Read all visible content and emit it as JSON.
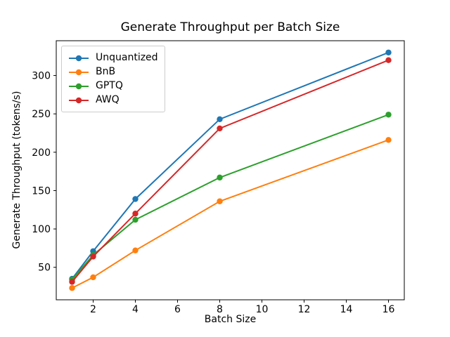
{
  "chart_data": {
    "type": "line",
    "title": "Generate Throughput per Batch Size",
    "xlabel": "Batch Size",
    "ylabel": "Generate Throughput (tokens/s)",
    "x": [
      1,
      2,
      4,
      8,
      16
    ],
    "series": [
      {
        "name": "Unquantized",
        "color": "#1f77b4",
        "values": [
          35,
          71,
          139,
          243,
          330
        ]
      },
      {
        "name": "BnB",
        "color": "#ff7f0e",
        "values": [
          23,
          37,
          72,
          136,
          216
        ]
      },
      {
        "name": "GPTQ",
        "color": "#2ca02c",
        "values": [
          34,
          66,
          112,
          167,
          249
        ]
      },
      {
        "name": "AWQ",
        "color": "#d62728",
        "values": [
          31,
          64,
          120,
          231,
          320
        ]
      }
    ],
    "xticks": [
      2,
      4,
      6,
      8,
      10,
      12,
      14,
      16
    ],
    "yticks": [
      50,
      100,
      150,
      200,
      250,
      300
    ],
    "xlim": [
      0.25,
      16.75
    ],
    "ylim": [
      7.65,
      345.35
    ],
    "grid": false,
    "legend_position": "upper left",
    "marker": "circle",
    "axis_color": "#000000"
  }
}
